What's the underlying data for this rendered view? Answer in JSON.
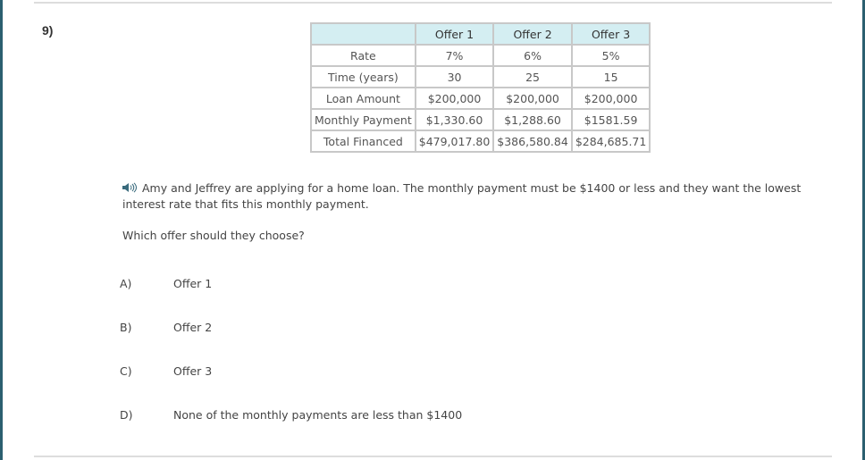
{
  "question": {
    "number": "9)",
    "table": {
      "headers": [
        "",
        "Offer 1",
        "Offer 2",
        "Offer 3"
      ],
      "rows": [
        [
          "Rate",
          "7%",
          "6%",
          "5%"
        ],
        [
          "Time (years)",
          "30",
          "25",
          "15"
        ],
        [
          "Loan Amount",
          "$200,000",
          "$200,000",
          "$200,000"
        ],
        [
          "Monthly Payment",
          "$1,330.60",
          "$1,288.60",
          "$1581.59"
        ],
        [
          "Total Financed",
          "$479,017.80",
          "$386,580.84",
          "$284,685.71"
        ]
      ]
    },
    "prompt": "Amy and Jeffrey are applying for a home loan. The monthly payment must be $1400 or less and they want the lowest interest rate that fits this monthly payment.",
    "speaker_icon": "speaker-icon",
    "which": "Which offer should they choose?",
    "options": [
      {
        "letter": "A)",
        "text": "Offer 1"
      },
      {
        "letter": "B)",
        "text": "Offer 2"
      },
      {
        "letter": "C)",
        "text": "Offer 3"
      },
      {
        "letter": "D)",
        "text": "None of the monthly payments are less than $1400"
      }
    ]
  },
  "colors": {
    "edge": "#2b5f70",
    "header_bg": "#d4eef2"
  }
}
